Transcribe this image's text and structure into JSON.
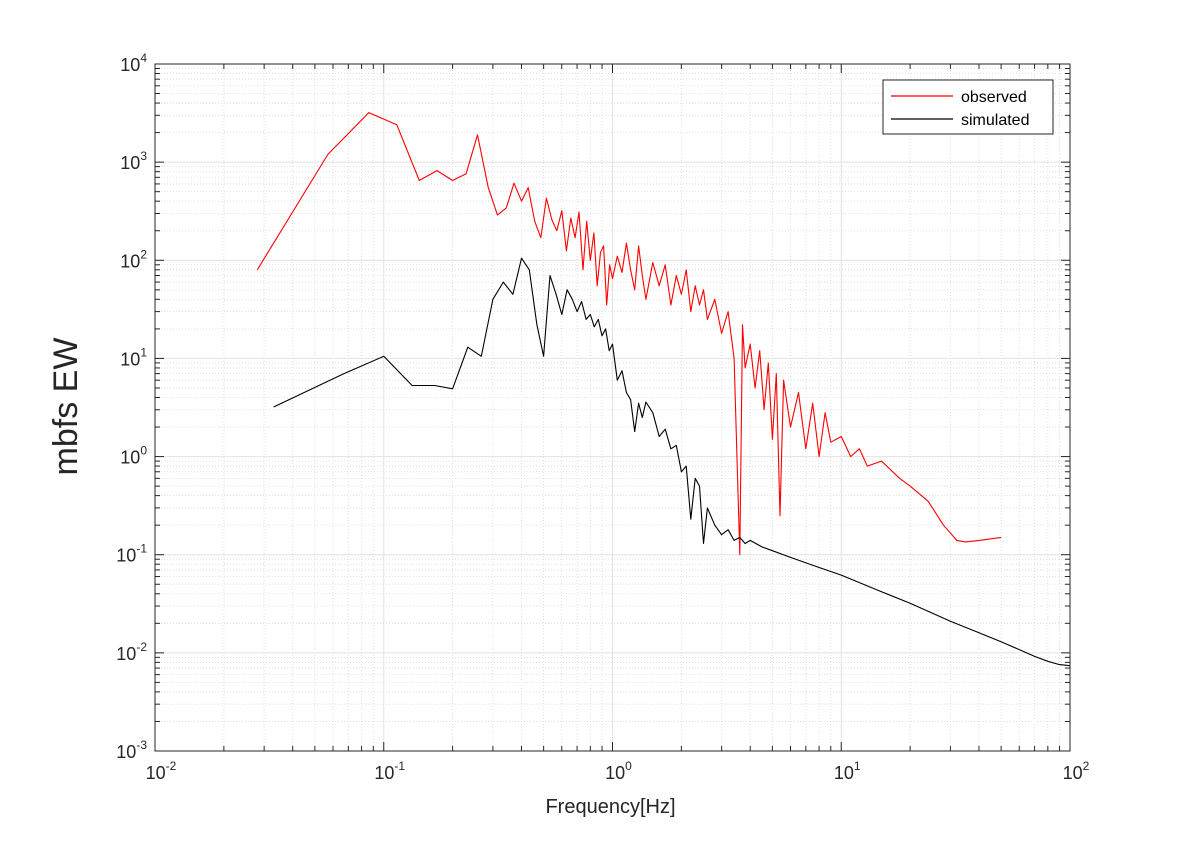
{
  "chart_data": {
    "type": "line",
    "title": "",
    "xlabel": "Frequency[Hz]",
    "ylabel": "mbfs EW",
    "xscale": "log",
    "yscale": "log",
    "xlim": [
      0.01,
      100
    ],
    "ylim": [
      0.001,
      10000
    ],
    "grid": "on (major and minor)",
    "legend_position": "top-right",
    "x_tick_labels": [
      {
        "base": "10",
        "exp": "-2"
      },
      {
        "base": "10",
        "exp": "-1"
      },
      {
        "base": "10",
        "exp": "0"
      },
      {
        "base": "10",
        "exp": "1"
      },
      {
        "base": "10",
        "exp": "2"
      }
    ],
    "y_tick_labels": [
      {
        "base": "10",
        "exp": "-3"
      },
      {
        "base": "10",
        "exp": "-2"
      },
      {
        "base": "10",
        "exp": "-1"
      },
      {
        "base": "10",
        "exp": "0"
      },
      {
        "base": "10",
        "exp": "1"
      },
      {
        "base": "10",
        "exp": "2"
      },
      {
        "base": "10",
        "exp": "3"
      },
      {
        "base": "10",
        "exp": "4"
      }
    ],
    "series": [
      {
        "name": "observed",
        "color": "#ff0000",
        "points": [
          [
            0.028,
            80
          ],
          [
            0.057,
            1200
          ],
          [
            0.086,
            3200
          ],
          [
            0.114,
            2400
          ],
          [
            0.143,
            650
          ],
          [
            0.171,
            820
          ],
          [
            0.2,
            650
          ],
          [
            0.229,
            760
          ],
          [
            0.257,
            1900
          ],
          [
            0.286,
            560
          ],
          [
            0.314,
            290
          ],
          [
            0.343,
            340
          ],
          [
            0.371,
            610
          ],
          [
            0.4,
            400
          ],
          [
            0.428,
            550
          ],
          [
            0.457,
            250
          ],
          [
            0.486,
            170
          ],
          [
            0.514,
            430
          ],
          [
            0.543,
            260
          ],
          [
            0.571,
            200
          ],
          [
            0.6,
            320
          ],
          [
            0.629,
            125
          ],
          [
            0.657,
            270
          ],
          [
            0.686,
            170
          ],
          [
            0.714,
            310
          ],
          [
            0.743,
            80
          ],
          [
            0.771,
            250
          ],
          [
            0.8,
            100
          ],
          [
            0.829,
            190
          ],
          [
            0.857,
            55
          ],
          [
            0.886,
            120
          ],
          [
            0.914,
            140
          ],
          [
            0.943,
            35
          ],
          [
            0.971,
            90
          ],
          [
            1.0,
            65
          ],
          [
            1.05,
            110
          ],
          [
            1.1,
            75
          ],
          [
            1.15,
            150
          ],
          [
            1.2,
            80
          ],
          [
            1.25,
            50
          ],
          [
            1.3,
            140
          ],
          [
            1.35,
            70
          ],
          [
            1.4,
            40
          ],
          [
            1.5,
            95
          ],
          [
            1.6,
            55
          ],
          [
            1.7,
            90
          ],
          [
            1.8,
            35
          ],
          [
            1.9,
            70
          ],
          [
            2.0,
            45
          ],
          [
            2.1,
            80
          ],
          [
            2.2,
            30
          ],
          [
            2.3,
            55
          ],
          [
            2.4,
            35
          ],
          [
            2.5,
            50
          ],
          [
            2.6,
            25
          ],
          [
            2.8,
            40
          ],
          [
            3.0,
            18
          ],
          [
            3.2,
            30
          ],
          [
            3.4,
            10
          ],
          [
            3.6,
            0.1
          ],
          [
            3.7,
            22
          ],
          [
            3.8,
            8
          ],
          [
            4.0,
            14
          ],
          [
            4.2,
            5
          ],
          [
            4.4,
            12
          ],
          [
            4.6,
            3
          ],
          [
            4.8,
            9
          ],
          [
            5.0,
            1.5
          ],
          [
            5.2,
            7
          ],
          [
            5.4,
            0.25
          ],
          [
            5.6,
            6
          ],
          [
            6.0,
            2
          ],
          [
            6.5,
            4.5
          ],
          [
            7.0,
            1.2
          ],
          [
            7.5,
            3.5
          ],
          [
            8.0,
            1.0
          ],
          [
            8.5,
            2.8
          ],
          [
            9.0,
            1.4
          ],
          [
            10,
            1.6
          ],
          [
            11,
            1.0
          ],
          [
            12,
            1.2
          ],
          [
            13,
            0.8
          ],
          [
            15,
            0.9
          ],
          [
            18,
            0.6
          ],
          [
            20,
            0.5
          ],
          [
            24,
            0.35
          ],
          [
            28,
            0.2
          ],
          [
            32,
            0.14
          ],
          [
            35,
            0.135
          ],
          [
            40,
            0.14
          ],
          [
            50,
            0.15
          ]
        ]
      },
      {
        "name": "simulated",
        "color": "#000000",
        "points": [
          [
            0.033,
            3.2
          ],
          [
            0.067,
            7
          ],
          [
            0.1,
            10.5
          ],
          [
            0.133,
            5.3
          ],
          [
            0.167,
            5.3
          ],
          [
            0.2,
            4.9
          ],
          [
            0.233,
            13
          ],
          [
            0.267,
            10.5
          ],
          [
            0.3,
            40
          ],
          [
            0.333,
            60
          ],
          [
            0.367,
            45
          ],
          [
            0.4,
            105
          ],
          [
            0.433,
            80
          ],
          [
            0.467,
            22
          ],
          [
            0.5,
            10.5
          ],
          [
            0.533,
            70
          ],
          [
            0.567,
            45
          ],
          [
            0.6,
            28
          ],
          [
            0.633,
            50
          ],
          [
            0.667,
            40
          ],
          [
            0.7,
            30
          ],
          [
            0.733,
            38
          ],
          [
            0.767,
            25
          ],
          [
            0.8,
            28
          ],
          [
            0.833,
            21
          ],
          [
            0.867,
            25
          ],
          [
            0.9,
            17
          ],
          [
            0.933,
            20
          ],
          [
            0.967,
            12
          ],
          [
            1.0,
            14
          ],
          [
            1.05,
            6
          ],
          [
            1.1,
            7.5
          ],
          [
            1.15,
            4.5
          ],
          [
            1.2,
            3.8
          ],
          [
            1.25,
            1.8
          ],
          [
            1.3,
            3.5
          ],
          [
            1.35,
            2.5
          ],
          [
            1.4,
            3.6
          ],
          [
            1.5,
            2.8
          ],
          [
            1.6,
            1.6
          ],
          [
            1.7,
            1.9
          ],
          [
            1.8,
            1.2
          ],
          [
            1.9,
            1.3
          ],
          [
            2.0,
            0.7
          ],
          [
            2.1,
            0.8
          ],
          [
            2.2,
            0.23
          ],
          [
            2.3,
            0.6
          ],
          [
            2.4,
            0.5
          ],
          [
            2.5,
            0.13
          ],
          [
            2.6,
            0.3
          ],
          [
            2.8,
            0.2
          ],
          [
            3.0,
            0.16
          ],
          [
            3.2,
            0.18
          ],
          [
            3.4,
            0.14
          ],
          [
            3.6,
            0.15
          ],
          [
            3.8,
            0.13
          ],
          [
            4.0,
            0.14
          ],
          [
            4.5,
            0.12
          ],
          [
            5,
            0.11
          ],
          [
            6,
            0.094
          ],
          [
            8,
            0.074
          ],
          [
            10,
            0.062
          ],
          [
            15,
            0.042
          ],
          [
            20,
            0.032
          ],
          [
            30,
            0.021
          ],
          [
            40,
            0.016
          ],
          [
            50,
            0.013
          ],
          [
            60,
            0.0108
          ],
          [
            70,
            0.0092
          ],
          [
            80,
            0.0082
          ],
          [
            90,
            0.0076
          ],
          [
            100,
            0.0074
          ]
        ]
      }
    ]
  }
}
